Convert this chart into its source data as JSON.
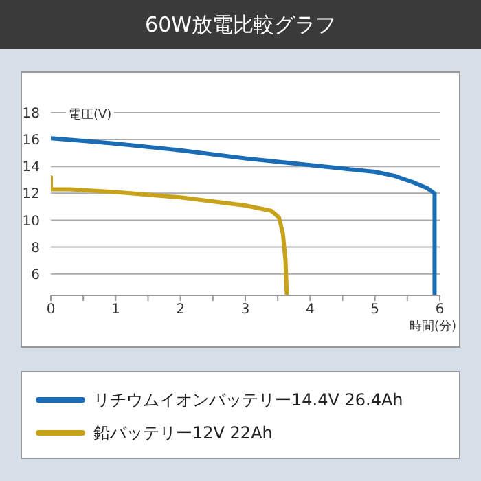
{
  "chart_data": {
    "type": "line",
    "title": "60W放電比較グラフ",
    "xlabel": "時間(分)",
    "ylabel": "電圧(V)",
    "xlim": [
      0,
      6
    ],
    "ylim": [
      4.4,
      18
    ],
    "xticks": [
      0,
      {
        "value": 0.5,
        "label": null
      },
      1,
      {
        "value": 1.5,
        "label": null
      },
      2,
      {
        "value": 2.5,
        "label": null
      },
      3,
      {
        "value": 3.5,
        "label": null
      },
      4,
      {
        "value": 4.5,
        "label": null
      },
      5,
      {
        "value": 5.5,
        "label": null
      },
      6
    ],
    "yticks": [
      6,
      8,
      10,
      12,
      14,
      16,
      18
    ],
    "grid": "y",
    "legend": "bottom",
    "marker": "none",
    "line_style": "solid",
    "series": [
      {
        "name": "リチウムイオンバッテリー14.4V 26.4Ah",
        "color": "#1a6db5",
        "x": [
          0,
          0.5,
          1,
          2,
          3,
          4,
          5,
          5.3,
          5.6,
          5.8,
          5.92,
          5.92
        ],
        "values": [
          16.1,
          15.9,
          15.7,
          15.2,
          14.6,
          14.1,
          13.6,
          13.3,
          12.8,
          12.4,
          12.0,
          4.5
        ]
      },
      {
        "name": "鉛バッテリー12V 22Ah",
        "color": "#c9a21c",
        "x": [
          0,
          0,
          0.3,
          1,
          2,
          3,
          3.4,
          3.52,
          3.58,
          3.62,
          3.64
        ],
        "values": [
          13.2,
          12.3,
          12.3,
          12.1,
          11.7,
          11.1,
          10.7,
          10.2,
          9,
          7,
          4.5
        ]
      }
    ]
  }
}
